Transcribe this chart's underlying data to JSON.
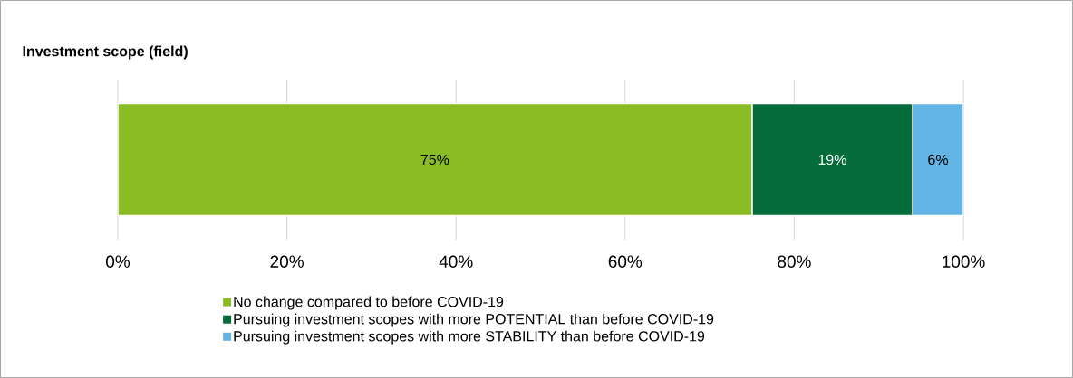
{
  "chart_data": {
    "type": "bar",
    "orientation": "horizontal",
    "stacked": true,
    "title": "Investment scope (field)",
    "categories": [
      null
    ],
    "series": [
      {
        "name": "No change compared to before COVID-19",
        "color": "#8abd24",
        "values": [
          75
        ],
        "value_labels": [
          "75%"
        ]
      },
      {
        "name": "Pursuing investment scopes with more POTENTIAL than before COVID-19",
        "color": "#046b3a",
        "values": [
          19
        ],
        "value_labels": [
          "19%"
        ]
      },
      {
        "name": "Pursuing investment scopes with more STABILITY than before COVID-19",
        "color": "#63b5e5",
        "values": [
          6
        ],
        "value_labels": [
          "6%"
        ]
      }
    ],
    "xlim": [
      0,
      100
    ],
    "xticks": [
      {
        "value": 0,
        "label": "0%"
      },
      {
        "value": 20,
        "label": "20%"
      },
      {
        "value": 40,
        "label": "40%"
      },
      {
        "value": 60,
        "label": "60%"
      },
      {
        "value": 80,
        "label": "80%"
      },
      {
        "value": 100,
        "label": "100%"
      }
    ],
    "grid": "x",
    "legend": "bottom"
  }
}
